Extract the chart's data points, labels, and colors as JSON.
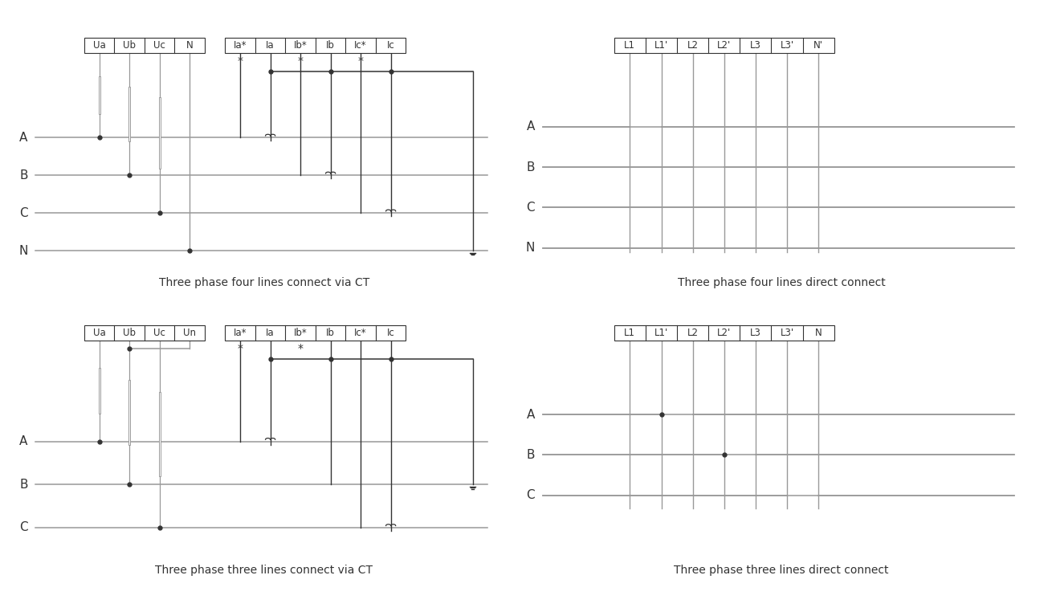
{
  "bg_color": "#ffffff",
  "line_color": "#999999",
  "dark_color": "#333333",
  "title1": "Three phase four lines connect via CT",
  "title2": "Three phase four lines direct connect",
  "title3": "Three phase three lines connect via CT",
  "title4": "Three phase three lines direct connect",
  "title_fontsize": 10,
  "label_fontsize": 11,
  "terminal_fontsize": 8.5
}
